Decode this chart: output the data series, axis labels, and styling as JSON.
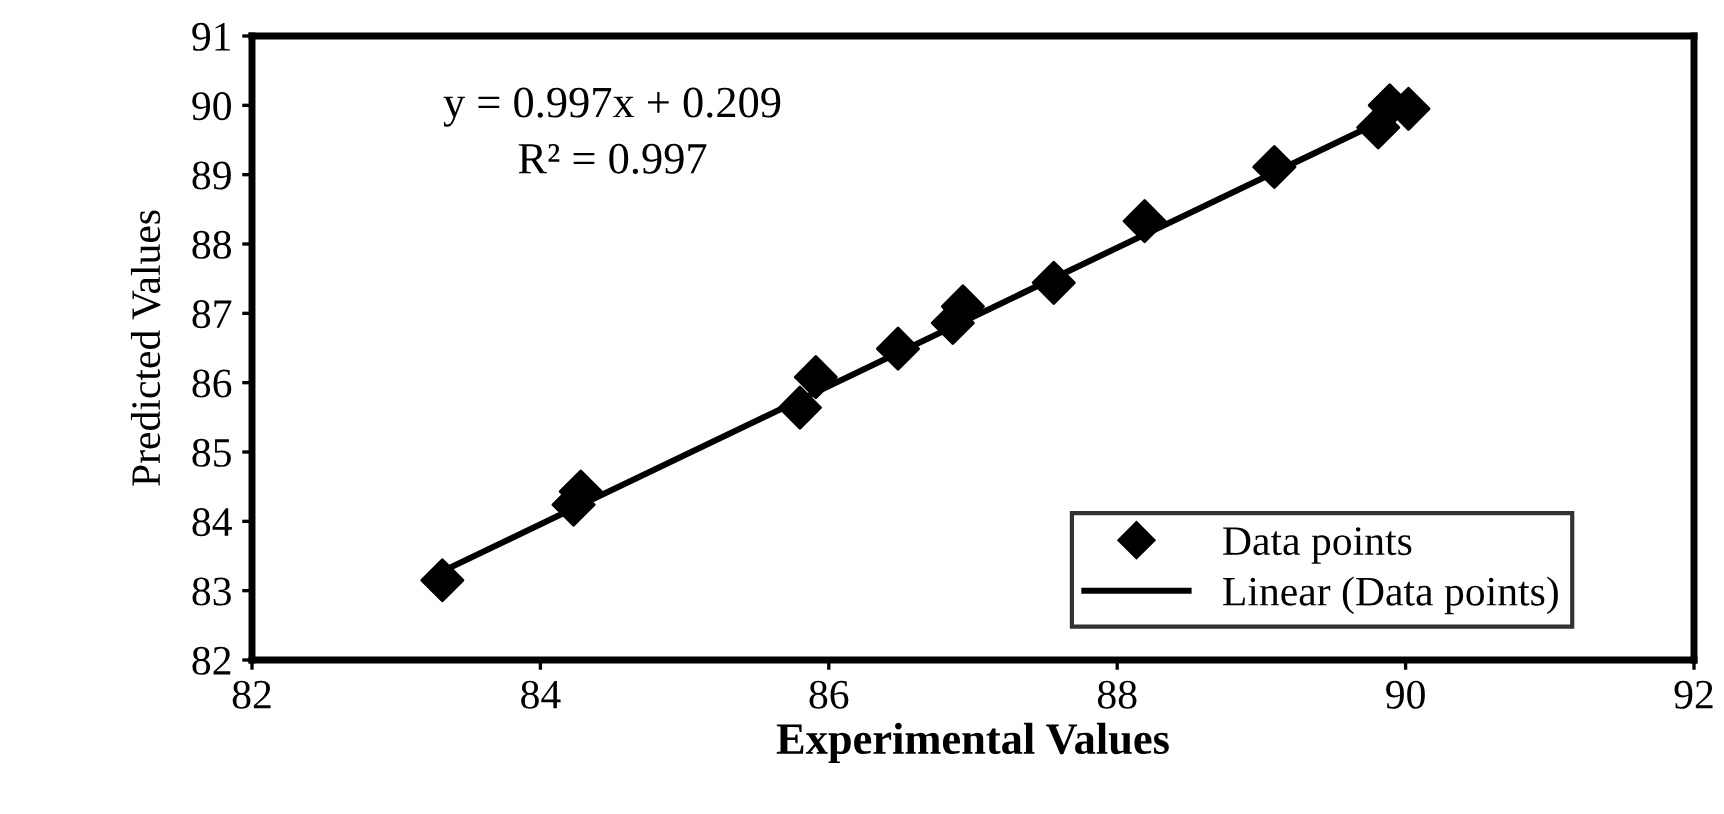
{
  "chart_data": {
    "type": "scatter",
    "xlabel": "Experimental Values",
    "ylabel": "Predicted Values",
    "annotations": [
      "y = 0.997x + 0.209",
      "R² = 0.997"
    ],
    "series": [
      {
        "name": "Data points",
        "color": "#000000",
        "marker": "diamond",
        "x": [
          83.32,
          84.23,
          84.28,
          85.8,
          85.91,
          86.48,
          86.86,
          86.93,
          87.56,
          88.19,
          89.09,
          89.81,
          89.89,
          90.02
        ],
        "values": [
          83.15,
          84.24,
          84.43,
          85.64,
          86.08,
          86.49,
          86.86,
          87.1,
          87.44,
          88.33,
          89.11,
          89.68,
          90.0,
          89.95
        ]
      },
      {
        "name": "Linear (Data points)",
        "type": "line",
        "color": "#000000",
        "marker": "none",
        "line_style": "solid",
        "x": [
          83.3,
          90.05
        ],
        "values": [
          83.26,
          89.99
        ]
      }
    ],
    "xlim": [
      82,
      92
    ],
    "xticks": [
      82,
      84,
      86,
      88,
      90,
      92
    ],
    "ylim": [
      82,
      91
    ],
    "yticks": [
      82,
      83,
      84,
      85,
      86,
      87,
      88,
      89,
      90,
      91
    ],
    "grid": false,
    "legend": "bottom right"
  }
}
